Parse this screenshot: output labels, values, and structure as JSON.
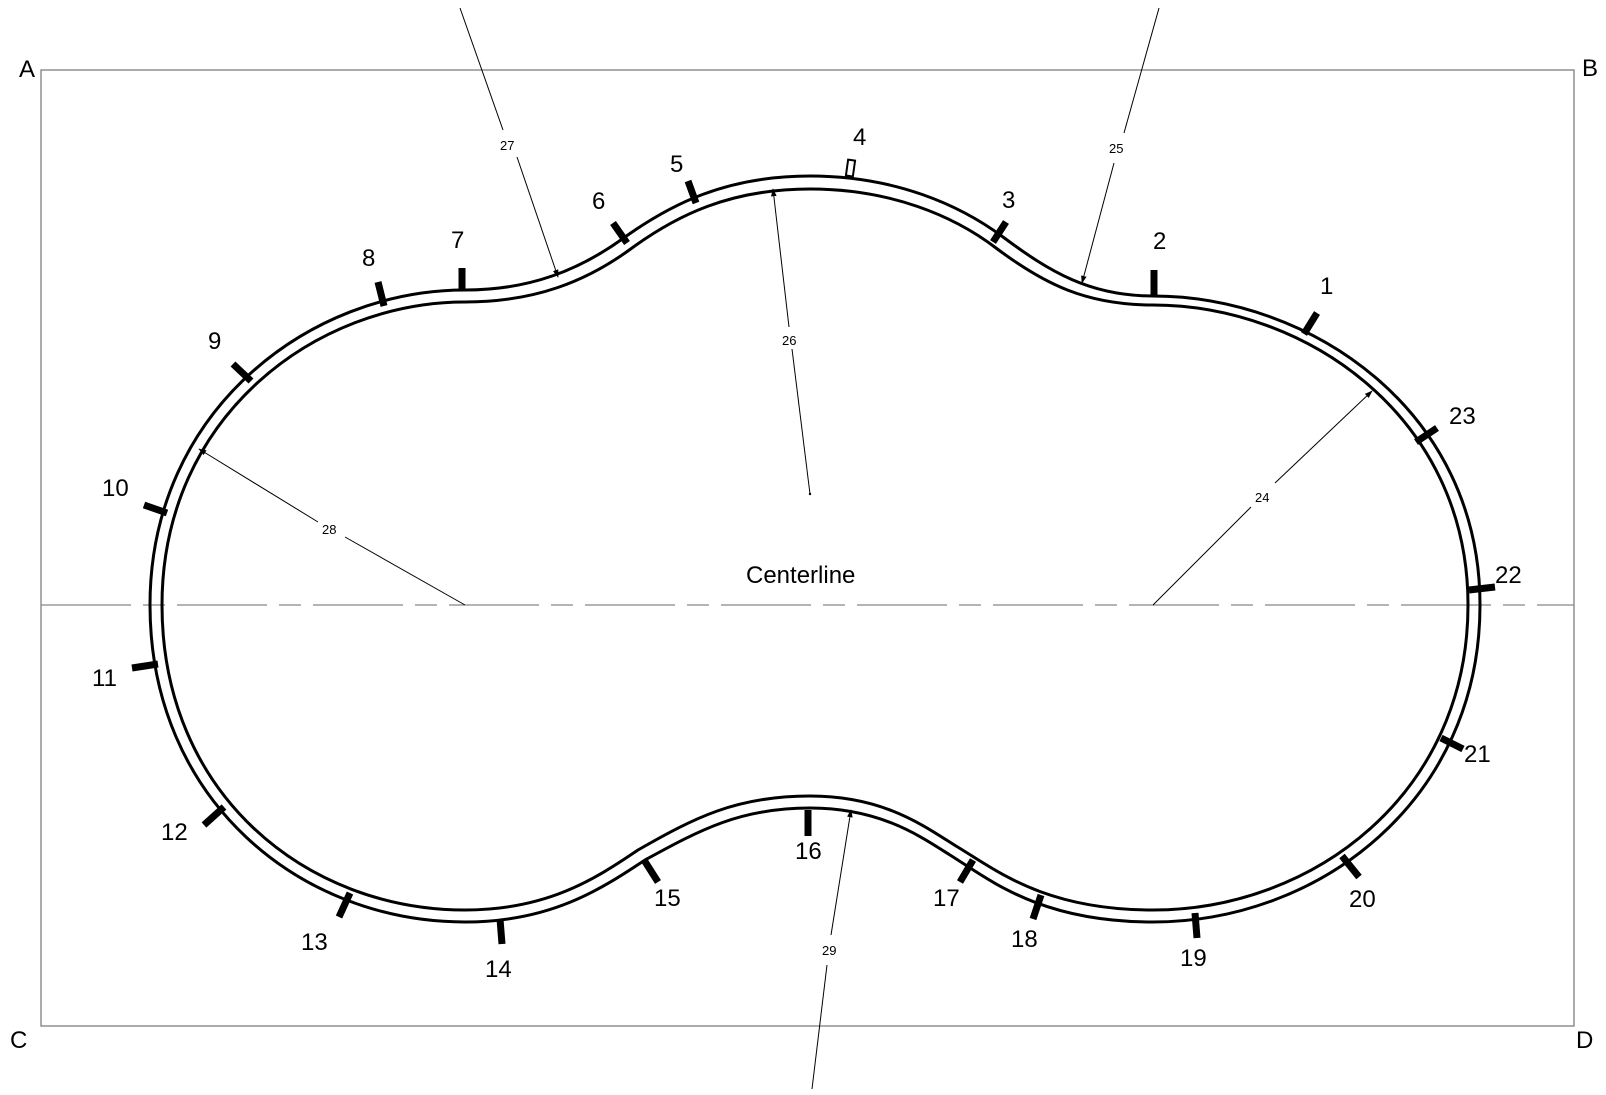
{
  "corners": {
    "a": "A",
    "b": "B",
    "c": "C",
    "d": "D"
  },
  "centerline_label": "Centerline",
  "posts": [
    "1",
    "2",
    "3",
    "4",
    "5",
    "6",
    "7",
    "8",
    "9",
    "10",
    "11",
    "12",
    "13",
    "14",
    "15",
    "16",
    "17",
    "18",
    "19",
    "20",
    "21",
    "22",
    "23"
  ],
  "dimensions": {
    "d24": "24",
    "d25": "25",
    "d26": "26",
    "d27": "27",
    "d28": "28",
    "d29": "29"
  },
  "colors": {
    "ink": "#000000",
    "frame": "#888888"
  }
}
